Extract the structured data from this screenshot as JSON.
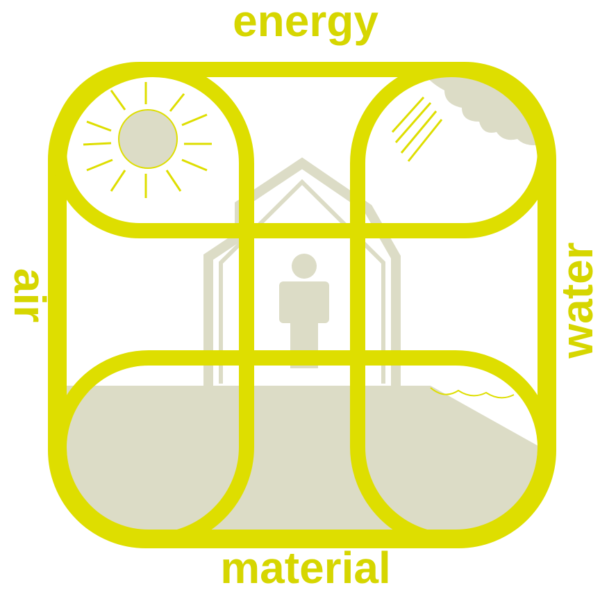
{
  "labels": {
    "top": "energy",
    "right": "water",
    "bottom": "material",
    "left": "air"
  }
}
